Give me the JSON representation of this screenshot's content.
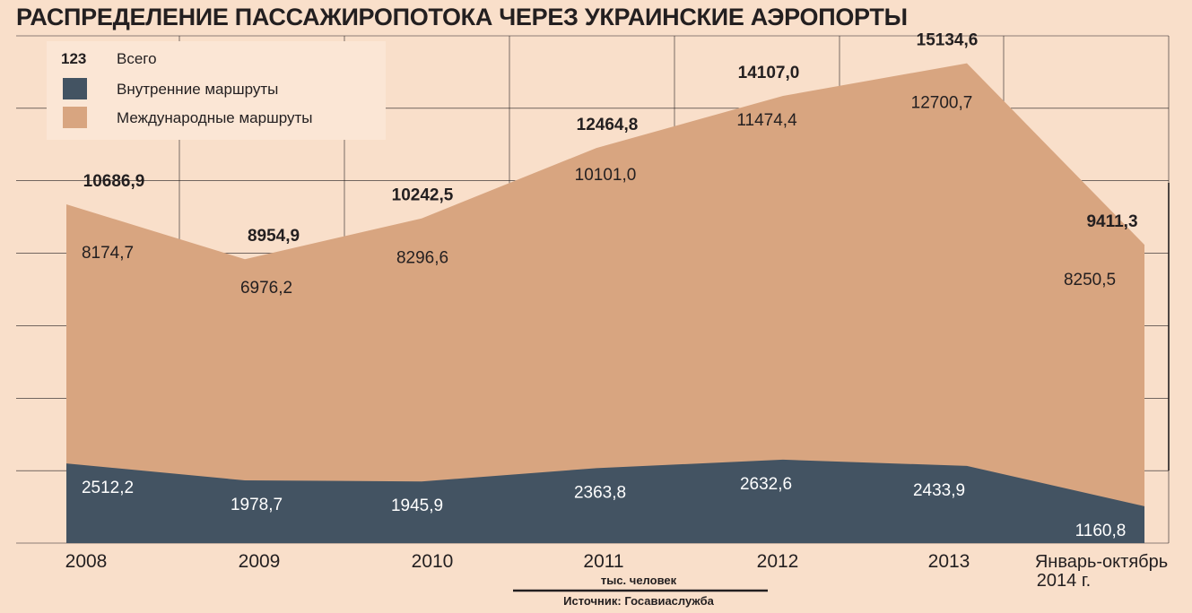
{
  "chart_data": {
    "type": "area",
    "title": "РАСПРЕДЕЛЕНИЕ ПАССАЖИРОПОТОКА ЧЕРЕЗ УКРАИНСКИЕ АЭРОПОРТЫ",
    "categories": [
      [
        "2008"
      ],
      [
        "2009"
      ],
      [
        "2010"
      ],
      [
        "2011"
      ],
      [
        "2012"
      ],
      [
        "2013"
      ],
      [
        "Январь-октябрь",
        "2014 г."
      ]
    ],
    "stacked": true,
    "series": [
      {
        "name": "Внутренние маршруты",
        "values": [
          2512.2,
          1978.7,
          1945.9,
          2363.8,
          2632.6,
          2433.9,
          1160.8
        ],
        "labels": [
          "2512,2",
          "1978,7",
          "1945,9",
          "2363,8",
          "2632,6",
          "2433,9",
          "1160,8"
        ],
        "color": "#435362"
      },
      {
        "name": "Международные маршруты",
        "values": [
          8174.7,
          6976.2,
          8296.6,
          10101.0,
          11474.4,
          12700.7,
          8250.5
        ],
        "labels": [
          "8174,7",
          "6976,2",
          "8296,6",
          "10101,0",
          "11474,4",
          "12700,7",
          "8250,5"
        ],
        "color": "#d8a580"
      }
    ],
    "totals": {
      "name": "Всего",
      "values": [
        10686.9,
        8954.9,
        10242.5,
        12464.8,
        14107.0,
        15134.6,
        9411.3
      ],
      "labels": [
        "10686,9",
        "8954,9",
        "10242,5",
        "12464,8",
        "14107,0",
        "15134,6",
        "9411,3"
      ]
    },
    "legend": {
      "sample_text": "123",
      "placement": "top-left",
      "entries": [
        "Всего",
        "Внутренние маршруты",
        "Международные маршруты"
      ]
    },
    "unit": "тыс. человек",
    "source": "Источник: Госавиаслужба",
    "ylim": [
      0,
      16000
    ],
    "grid": true,
    "colors": {
      "background": "#f9dfca",
      "legend_box": "#fbe6d5",
      "grid": "#231f20",
      "text": "#231f20",
      "domestic_label": "#ffffff"
    }
  }
}
